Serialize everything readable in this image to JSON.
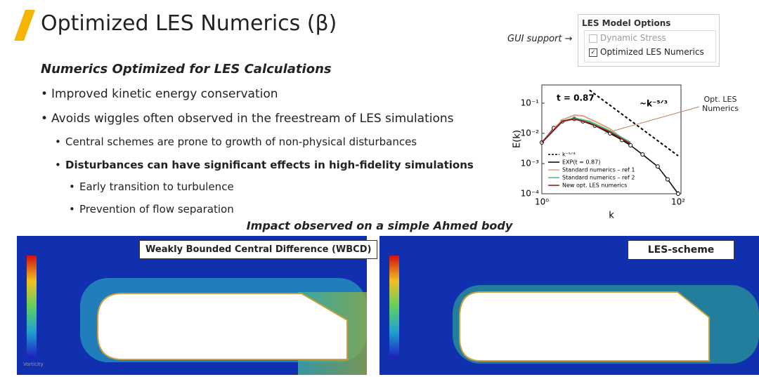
{
  "slide": {
    "title": "Optimized LES Numerics (β)",
    "subtitle": "Numerics Optimized for LES Calculations",
    "bullets": [
      {
        "text": "Improved kinetic energy conservation",
        "level": 0
      },
      {
        "text": "Avoids wiggles often observed in the freestream of LES simulations",
        "level": 0
      },
      {
        "text": "Central schemes are prone to growth of non-physical disturbances",
        "level": 1
      },
      {
        "text": "Disturbances can have significant effects in high-fidelity simulations",
        "level": 1,
        "bold": true
      },
      {
        "text": "Early transition to turbulence",
        "level": 2
      },
      {
        "text": "Prevention of flow separation",
        "level": 2
      }
    ],
    "gui": {
      "label": "GUI support",
      "box_title": "LES Model Options",
      "options": [
        {
          "text": "Dynamic Stress",
          "checked": false,
          "disabled": true
        },
        {
          "text": "Optimized LES Numerics",
          "checked": true,
          "disabled": false
        }
      ]
    },
    "caption": "Impact observed on a simple Ahmed body",
    "panels": [
      {
        "label": "Weakly Bounded Central Difference (WBCD)",
        "colorbar": "Vorticity"
      },
      {
        "label": "LES-scheme"
      }
    ]
  },
  "chart_data": {
    "type": "line",
    "log_x": true,
    "log_y": true,
    "x_label": "k",
    "y_label": "E(k)",
    "annotations": [
      "t = 0.87",
      "~k⁻⁵ᐟ³",
      "Opt. LES Numerics"
    ],
    "xlim": [
      1,
      110
    ],
    "ylim": [
      0.0001,
      0.4
    ],
    "xticks": [
      {
        "value": 1,
        "label": "10⁰"
      },
      {
        "value": 100,
        "label": "10²"
      }
    ],
    "yticks": [
      {
        "value": 0.1,
        "label": "10⁻¹"
      },
      {
        "value": 0.01,
        "label": "10⁻²"
      },
      {
        "value": 0.001,
        "label": "10⁻³"
      },
      {
        "value": 0.0001,
        "label": "10⁻⁴"
      }
    ],
    "series": [
      {
        "name": "k⁻⁵ᐟ³",
        "color": "#000000",
        "dash": true,
        "x": [
          5,
          100
        ],
        "values": [
          0.27,
          0.0018
        ]
      },
      {
        "name": "EXP(t = 0.87)",
        "color": "#000000",
        "markers": true,
        "x": [
          1,
          1.5,
          2,
          3,
          4,
          6,
          10,
          15,
          20,
          30,
          50,
          70,
          100
        ],
        "values": [
          0.005,
          0.015,
          0.025,
          0.03,
          0.025,
          0.018,
          0.01,
          0.006,
          0.004,
          0.002,
          0.0008,
          0.0003,
          0.0001
        ]
      },
      {
        "name": "Standard numerics – ref 1",
        "color": "#e0a080",
        "x": [
          1,
          2,
          3,
          4,
          6,
          10,
          15,
          20
        ],
        "values": [
          0.005,
          0.028,
          0.04,
          0.038,
          0.025,
          0.014,
          0.007,
          0.005
        ]
      },
      {
        "name": "Standard numerics – ref 2",
        "color": "#40c080",
        "x": [
          1,
          2,
          3,
          5,
          10,
          20
        ],
        "values": [
          0.005,
          0.025,
          0.032,
          0.025,
          0.012,
          0.005
        ]
      },
      {
        "name": "New opt. LES numerics",
        "color": "#8b1a1a",
        "x": [
          1,
          2,
          3,
          5,
          10,
          20
        ],
        "values": [
          0.005,
          0.025,
          0.03,
          0.022,
          0.011,
          0.0045
        ]
      }
    ]
  }
}
